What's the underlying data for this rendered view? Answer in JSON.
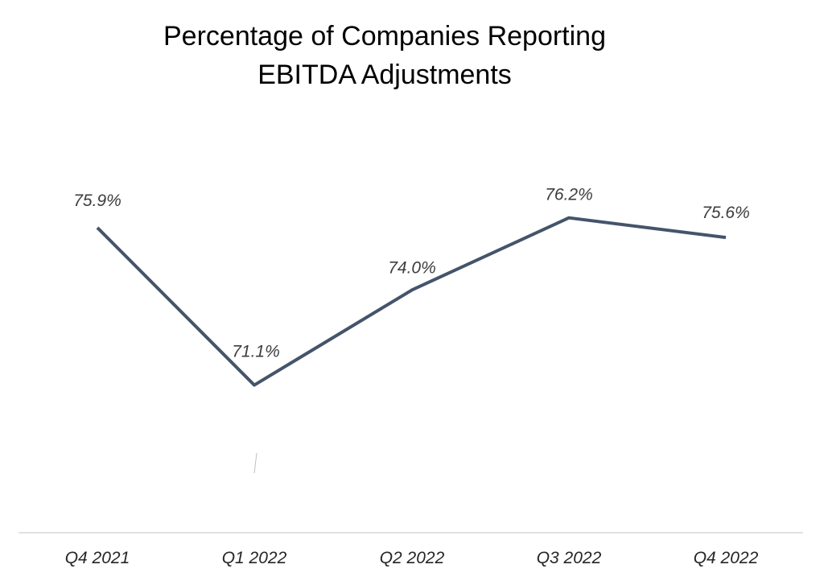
{
  "chart_data": {
    "type": "line",
    "title": [
      "Percentage of Companies Reporting",
      "EBITDA Adjustments"
    ],
    "categories": [
      "Q4 2021",
      "Q1 2022",
      "Q2 2022",
      "Q3 2022",
      "Q4 2022"
    ],
    "series": [
      {
        "values": [
          75.9,
          71.1,
          74.0,
          76.2,
          75.6
        ],
        "labels": [
          "75.9%",
          "71.1%",
          "74.0%",
          "76.2%",
          "75.6%"
        ]
      }
    ],
    "xlabel": "",
    "ylabel": "",
    "ylim": [
      66.6,
      77.1
    ],
    "grid": false,
    "legend": "none",
    "colors": {
      "line": "#44546a",
      "axis": "#d9d9d9",
      "label": "#3d3d3d"
    }
  }
}
